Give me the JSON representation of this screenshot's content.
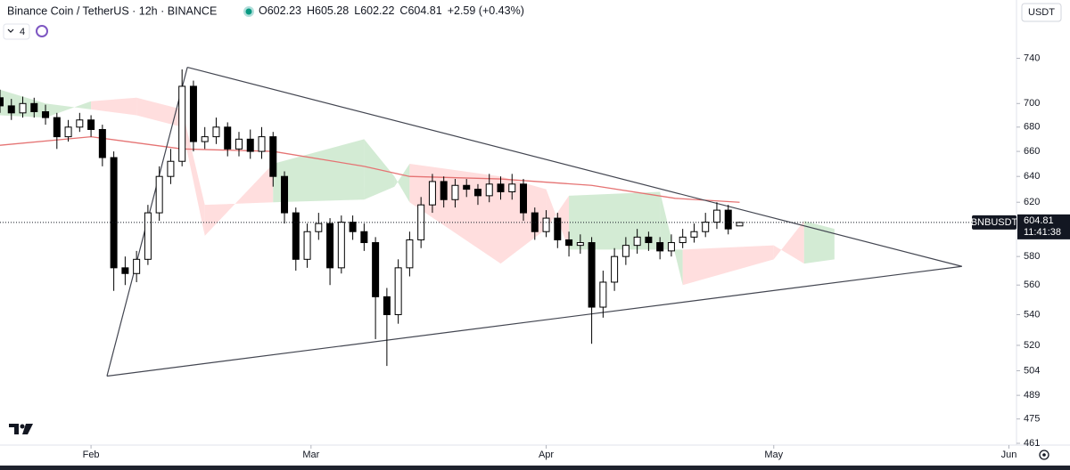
{
  "chart_data": {
    "type": "candlestick",
    "title": "Binance Coin / TetherUS · 12h · BINANCE",
    "ohlc_prefixes": [
      "O",
      "H",
      "L",
      "C"
    ],
    "change_label": "+2.59 (+0.43%)",
    "currency": "USDT",
    "indicator_count": "4",
    "symbol": "BNBUSDT",
    "countdown": "11:41:38",
    "log_scale": true,
    "grid": false,
    "up_color": "#ffffff",
    "down_color": "#000000",
    "edge_color": "#000000",
    "xlim": [
      -12,
      122
    ],
    "xticks": [
      {
        "value": 0,
        "label": "Feb"
      },
      {
        "value": 29,
        "label": "Mar"
      },
      {
        "value": 60,
        "label": "Apr"
      },
      {
        "value": 90,
        "label": "May"
      },
      {
        "value": 121,
        "label": "Jun"
      }
    ],
    "ylim": [
      460,
      795
    ],
    "yticks": [
      740,
      700,
      680,
      660,
      640,
      620,
      580,
      560,
      540,
      520,
      504,
      489,
      475,
      461
    ],
    "x": [
      -12,
      -10.5,
      -9,
      -7.5,
      -6,
      -4.5,
      -3,
      -1.5,
      0,
      1.5,
      3,
      4.5,
      6,
      7.5,
      9,
      10.5,
      12,
      13.5,
      15,
      16.5,
      18,
      19.5,
      21,
      22.5,
      24,
      25.5,
      27,
      28.5,
      30,
      31.5,
      33,
      34.5,
      36,
      37.5,
      39,
      40.5,
      42,
      43.5,
      45,
      46.5,
      48,
      49.5,
      51,
      52.5,
      54,
      55.5,
      57,
      58.5,
      60,
      61.5,
      63,
      64.5,
      66,
      67.5,
      69,
      70.5,
      72,
      73.5,
      75,
      76.5,
      78,
      79.5,
      81,
      82.5,
      84,
      85.5
    ],
    "open": [
      705,
      698,
      692,
      700,
      693,
      688,
      672,
      680,
      686,
      678,
      655,
      572,
      568,
      578,
      612,
      640,
      652,
      715,
      668,
      672,
      680,
      662,
      670,
      660,
      672,
      640,
      612,
      578,
      598,
      604,
      572,
      605,
      598,
      590,
      552,
      540,
      572,
      592,
      618,
      636,
      622,
      633,
      630,
      625,
      634,
      628,
      634,
      612,
      598,
      608,
      592,
      588,
      590,
      545,
      562,
      580,
      588,
      594,
      590,
      584,
      590,
      594,
      598,
      605,
      614,
      602.23
    ],
    "high": [
      712,
      704,
      706,
      705,
      699,
      692,
      686,
      692,
      690,
      682,
      660,
      580,
      584,
      618,
      648,
      662,
      730,
      720,
      680,
      688,
      684,
      676,
      678,
      680,
      676,
      644,
      616,
      604,
      612,
      608,
      610,
      610,
      604,
      594,
      558,
      578,
      598,
      624,
      642,
      640,
      638,
      638,
      634,
      642,
      640,
      642,
      638,
      616,
      614,
      612,
      598,
      596,
      594,
      570,
      586,
      594,
      600,
      598,
      594,
      596,
      600,
      604,
      612,
      620,
      618,
      605.28
    ],
    "low": [
      692,
      686,
      688,
      688,
      682,
      662,
      668,
      676,
      672,
      648,
      556,
      560,
      562,
      574,
      606,
      634,
      648,
      660,
      662,
      666,
      656,
      656,
      654,
      654,
      632,
      604,
      570,
      572,
      592,
      560,
      568,
      592,
      584,
      524,
      507,
      534,
      566,
      586,
      612,
      616,
      616,
      624,
      618,
      620,
      622,
      622,
      606,
      592,
      594,
      586,
      580,
      582,
      521,
      538,
      556,
      574,
      582,
      584,
      578,
      580,
      586,
      590,
      594,
      600,
      596,
      602.22
    ],
    "close": [
      698,
      692,
      700,
      693,
      688,
      672,
      680,
      686,
      678,
      655,
      572,
      568,
      578,
      612,
      640,
      652,
      715,
      668,
      672,
      680,
      662,
      670,
      660,
      672,
      640,
      612,
      578,
      598,
      604,
      572,
      605,
      598,
      590,
      552,
      540,
      572,
      592,
      618,
      636,
      622,
      633,
      630,
      625,
      634,
      628,
      634,
      612,
      598,
      608,
      592,
      588,
      590,
      545,
      562,
      580,
      588,
      594,
      590,
      584,
      590,
      594,
      598,
      605,
      614,
      600,
      604.81
    ],
    "moving_average": {
      "color": "#e57373",
      "x": [
        -12,
        0,
        12,
        24,
        36,
        42,
        54,
        66,
        77,
        85.5
      ],
      "values": [
        665,
        672,
        662,
        660,
        648,
        640,
        638,
        633,
        623,
        620
      ]
    },
    "cloud": {
      "up_color": "#c8e6c9",
      "down_color": "#ffd6d6",
      "x": [
        -12,
        -6,
        0,
        6,
        12,
        15,
        24,
        36,
        40,
        42,
        54,
        60,
        63,
        75,
        78,
        90,
        94,
        98
      ],
      "span_a": [
        712,
        700,
        695,
        690,
        680,
        595,
        650,
        670,
        640,
        620,
        575,
        600,
        625,
        628,
        560,
        578,
        606,
        600
      ],
      "span_b": [
        690,
        688,
        702,
        705,
        695,
        618,
        620,
        622,
        632,
        650,
        640,
        630,
        585,
        585,
        585,
        588,
        575,
        578
      ]
    },
    "trendlines": [
      {
        "color": "#434651",
        "x": [
          2.1,
          12.7
        ],
        "y": [
          500.7,
          731.9
        ]
      },
      {
        "color": "#434651",
        "x": [
          12.7,
          114.8
        ],
        "y": [
          731.9,
          573
        ]
      },
      {
        "color": "#434651",
        "x": [
          2.1,
          114.8
        ],
        "y": [
          500.7,
          573
        ]
      }
    ]
  }
}
